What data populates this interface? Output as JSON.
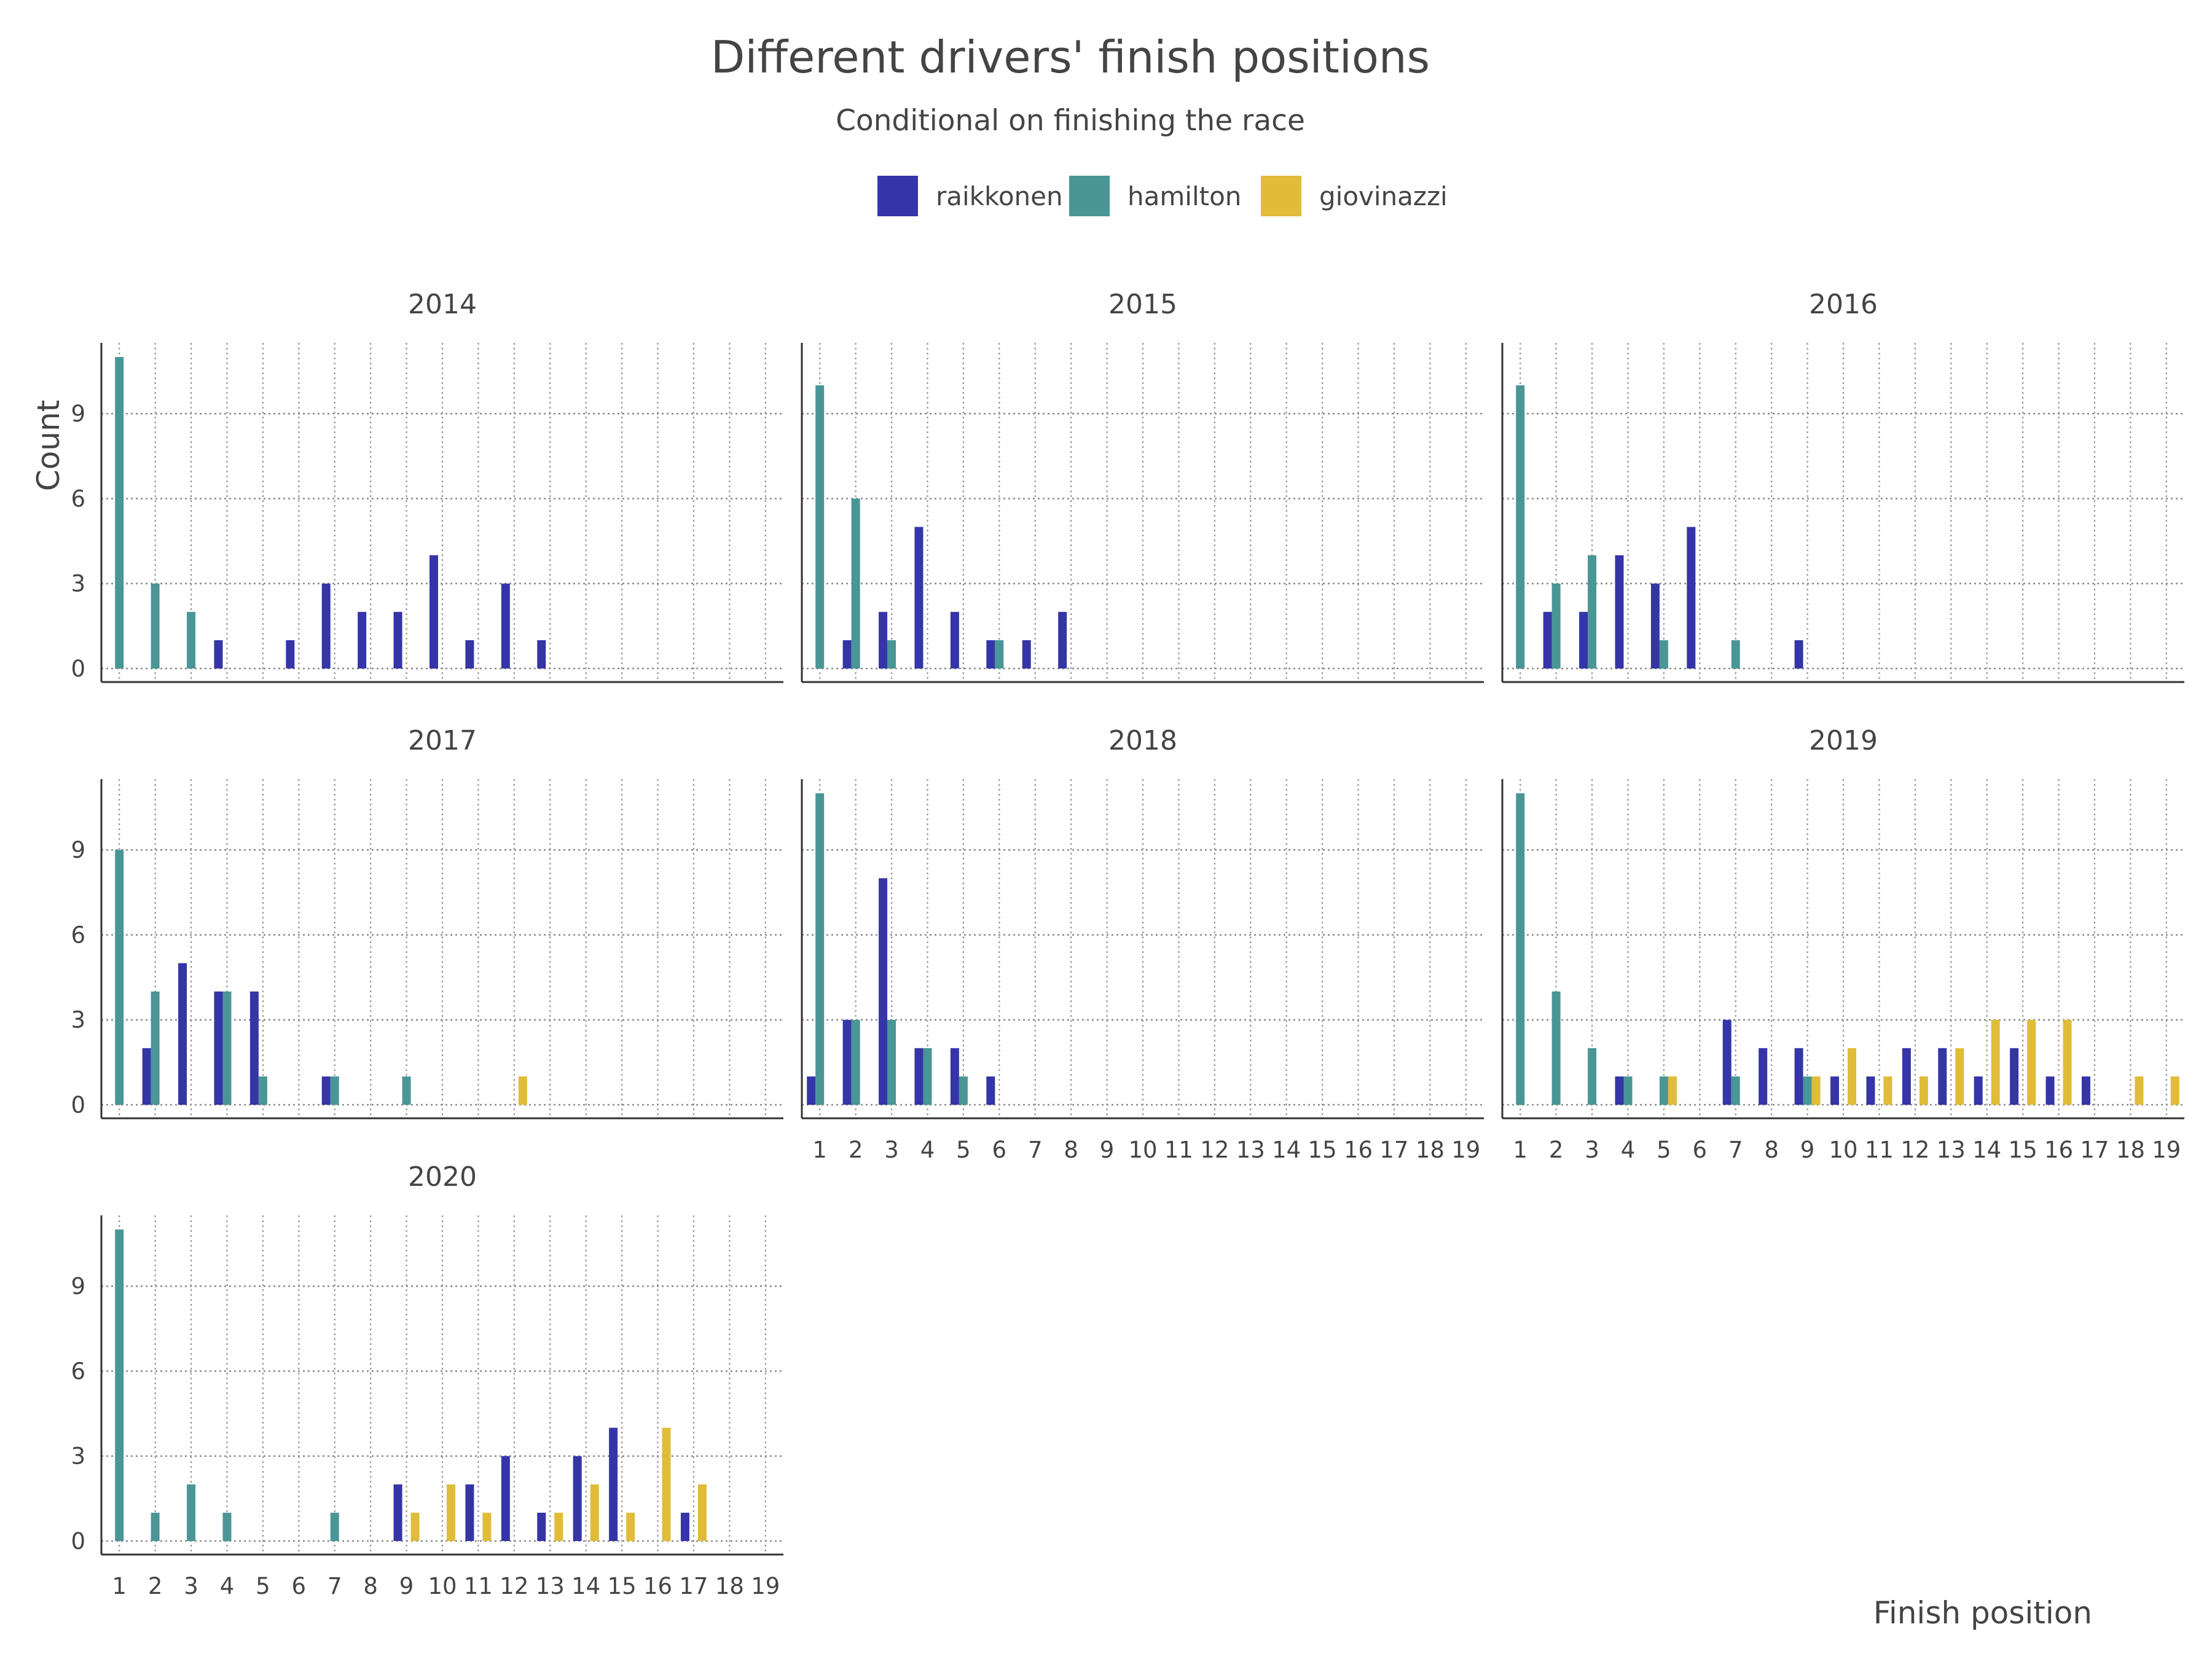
{
  "chart_data": {
    "type": "bar",
    "title": "Different drivers' finish positions",
    "subtitle": "Conditional on finishing the race",
    "xlabel": "Finish position",
    "ylabel": "Count",
    "x": [
      1,
      2,
      3,
      4,
      5,
      6,
      7,
      8,
      9,
      10,
      11,
      12,
      13,
      14,
      15,
      16,
      17,
      18,
      19
    ],
    "y_ticks": [
      0,
      3,
      6,
      9
    ],
    "ylim": [
      0,
      11.5
    ],
    "grid": true,
    "legend_position": "top",
    "series": [
      {
        "name": "raikkonen",
        "color": "#3535a8"
      },
      {
        "name": "hamilton",
        "color": "#4a9696"
      },
      {
        "name": "giovinazzi",
        "color": "#e0bc38"
      }
    ],
    "panels": [
      {
        "label": "2014",
        "raikkonen": [
          0,
          0,
          0,
          1,
          0,
          1,
          3,
          2,
          2,
          4,
          1,
          3,
          1,
          0,
          0,
          0,
          0,
          0,
          0
        ],
        "hamilton": [
          11,
          3,
          2,
          0,
          0,
          0,
          0,
          0,
          0,
          0,
          0,
          0,
          0,
          0,
          0,
          0,
          0,
          0,
          0
        ],
        "giovinazzi": [
          0,
          0,
          0,
          0,
          0,
          0,
          0,
          0,
          0,
          0,
          0,
          0,
          0,
          0,
          0,
          0,
          0,
          0,
          0
        ]
      },
      {
        "label": "2015",
        "raikkonen": [
          0,
          1,
          2,
          5,
          2,
          1,
          1,
          2,
          0,
          0,
          0,
          0,
          0,
          0,
          0,
          0,
          0,
          0,
          0
        ],
        "hamilton": [
          10,
          6,
          1,
          0,
          0,
          1,
          0,
          0,
          0,
          0,
          0,
          0,
          0,
          0,
          0,
          0,
          0,
          0,
          0
        ],
        "giovinazzi": [
          0,
          0,
          0,
          0,
          0,
          0,
          0,
          0,
          0,
          0,
          0,
          0,
          0,
          0,
          0,
          0,
          0,
          0,
          0
        ]
      },
      {
        "label": "2016",
        "raikkonen": [
          0,
          2,
          2,
          4,
          3,
          5,
          0,
          0,
          1,
          0,
          0,
          0,
          0,
          0,
          0,
          0,
          0,
          0,
          0
        ],
        "hamilton": [
          10,
          3,
          4,
          0,
          1,
          0,
          1,
          0,
          0,
          0,
          0,
          0,
          0,
          0,
          0,
          0,
          0,
          0,
          0
        ],
        "giovinazzi": [
          0,
          0,
          0,
          0,
          0,
          0,
          0,
          0,
          0,
          0,
          0,
          0,
          0,
          0,
          0,
          0,
          0,
          0,
          0
        ]
      },
      {
        "label": "2017",
        "raikkonen": [
          0,
          2,
          5,
          4,
          4,
          0,
          1,
          0,
          0,
          0,
          0,
          0,
          0,
          0,
          0,
          0,
          0,
          0,
          0
        ],
        "hamilton": [
          9,
          4,
          0,
          4,
          1,
          0,
          1,
          0,
          1,
          0,
          0,
          0,
          0,
          0,
          0,
          0,
          0,
          0,
          0
        ],
        "giovinazzi": [
          0,
          0,
          0,
          0,
          0,
          0,
          0,
          0,
          0,
          0,
          0,
          1,
          0,
          0,
          0,
          0,
          0,
          0,
          0
        ]
      },
      {
        "label": "2018",
        "raikkonen": [
          1,
          3,
          8,
          2,
          2,
          1,
          0,
          0,
          0,
          0,
          0,
          0,
          0,
          0,
          0,
          0,
          0,
          0,
          0
        ],
        "hamilton": [
          11,
          3,
          3,
          2,
          1,
          0,
          0,
          0,
          0,
          0,
          0,
          0,
          0,
          0,
          0,
          0,
          0,
          0,
          0
        ],
        "giovinazzi": [
          0,
          0,
          0,
          0,
          0,
          0,
          0,
          0,
          0,
          0,
          0,
          0,
          0,
          0,
          0,
          0,
          0,
          0,
          0
        ]
      },
      {
        "label": "2019",
        "raikkonen": [
          0,
          0,
          0,
          1,
          0,
          0,
          3,
          2,
          2,
          1,
          1,
          2,
          2,
          1,
          2,
          1,
          1,
          0,
          0
        ],
        "hamilton": [
          11,
          4,
          2,
          1,
          1,
          0,
          1,
          0,
          1,
          0,
          0,
          0,
          0,
          0,
          0,
          0,
          0,
          0,
          0
        ],
        "giovinazzi": [
          0,
          0,
          0,
          0,
          1,
          0,
          0,
          0,
          1,
          2,
          1,
          1,
          2,
          3,
          3,
          3,
          0,
          1,
          1
        ]
      },
      {
        "label": "2020",
        "raikkonen": [
          0,
          0,
          0,
          0,
          0,
          0,
          0,
          0,
          2,
          0,
          2,
          3,
          1,
          3,
          4,
          0,
          1,
          0,
          0
        ],
        "hamilton": [
          11,
          1,
          2,
          1,
          0,
          0,
          1,
          0,
          0,
          0,
          0,
          0,
          0,
          0,
          0,
          0,
          0,
          0,
          0
        ],
        "giovinazzi": [
          0,
          0,
          0,
          0,
          0,
          0,
          0,
          0,
          1,
          2,
          1,
          0,
          1,
          2,
          1,
          4,
          2,
          0,
          0
        ]
      }
    ]
  }
}
